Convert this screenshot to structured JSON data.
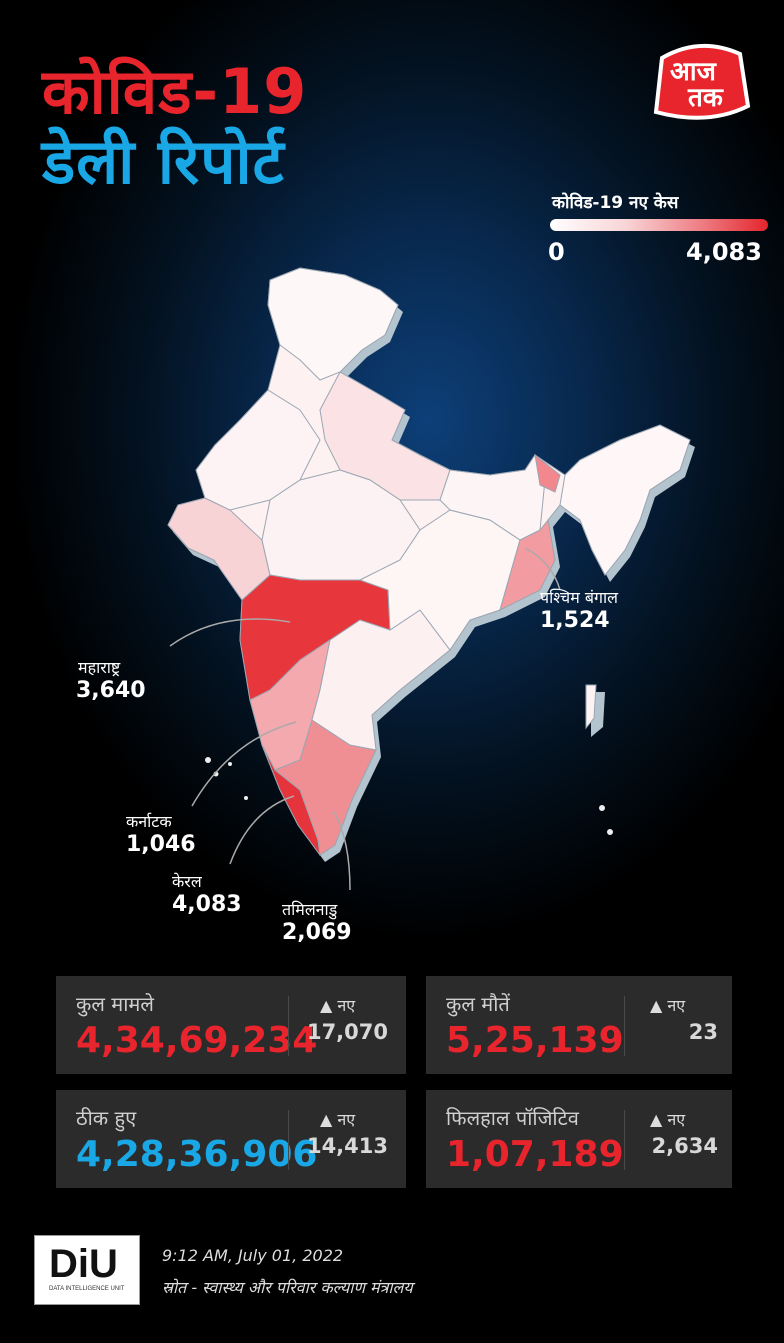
{
  "header": {
    "title_line1": "कोविड-19",
    "title_line2": "डेली रिपोर्ट",
    "logo_text_line1": "आज",
    "logo_text_line2": "तक"
  },
  "legend": {
    "title": "कोविड-19 नए केस",
    "min": "0",
    "max": "4,083",
    "color_low": "#ffffff",
    "color_high": "#e4252d"
  },
  "states": [
    {
      "name": "पश्चिम बंगाल",
      "value": "1,524"
    },
    {
      "name": "महाराष्ट्र",
      "value": "3,640"
    },
    {
      "name": "कर्नाटक",
      "value": "1,046"
    },
    {
      "name": "केरल",
      "value": "4,083"
    },
    {
      "name": "तमिलनाडु",
      "value": "2,069"
    }
  ],
  "stats": {
    "total_cases": {
      "label": "कुल मामले",
      "value": "4,34,69,234",
      "new_label": "नए",
      "new_value": "17,070"
    },
    "total_deaths": {
      "label": "कुल मौतें",
      "value": "5,25,139",
      "new_label": "नए",
      "new_value": "23"
    },
    "recovered": {
      "label": "ठीक हुए",
      "value": "4,28,36,906",
      "new_label": "नए",
      "new_value": "14,413"
    },
    "active": {
      "label": "फिलहाल पॉजिटिव",
      "value": "1,07,189",
      "new_label": "नए",
      "new_value": "2,634"
    }
  },
  "footer": {
    "brand": "DiU",
    "brand_sub": "DATA INTELLIGENCE UNIT",
    "timestamp": "9:12 AM, July 01, 2022",
    "source": "स्रोत - स्वास्थ्य और परिवार कल्याण मंत्रालय"
  },
  "colors": {
    "accent_red": "#e8252d",
    "accent_blue": "#1aa7e6",
    "card_bg": "#2b2b2b"
  }
}
